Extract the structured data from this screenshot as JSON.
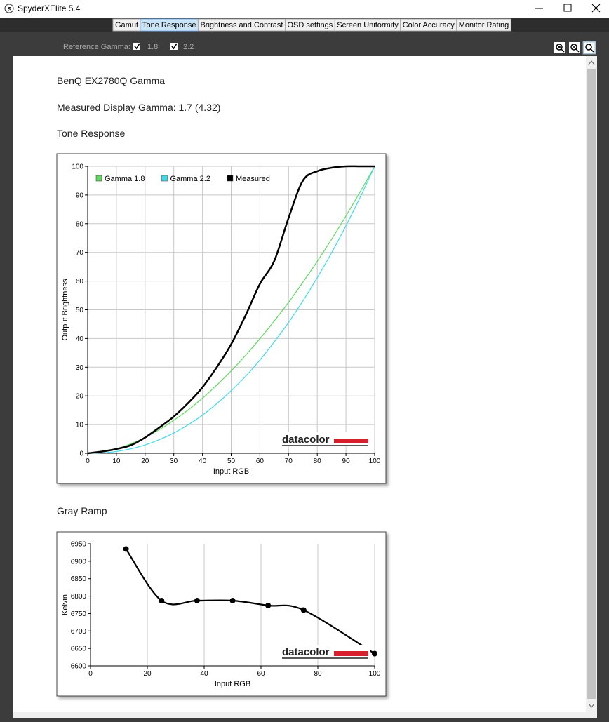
{
  "window": {
    "title": "SpyderXElite 5.4"
  },
  "tabs": [
    "Gamut",
    "Tone Response",
    "Brightness and Contrast",
    "OSD settings",
    "Screen Uniformity",
    "Color Accuracy",
    "Monitor Rating"
  ],
  "active_tab": 1,
  "toolbar": {
    "reference_gamma_label": "Reference Gamma:",
    "options": [
      "1.8",
      "2.2"
    ]
  },
  "report": {
    "title": "BenQ EX2780Q Gamma",
    "measured": "Measured Display Gamma: 1.7 (4.32)"
  },
  "chart_data": [
    {
      "type": "line",
      "title": "Tone Response",
      "x_label": "Input RGB",
      "y_label": "Output Brightness",
      "logo": "datacolor",
      "x": [
        0,
        5,
        10,
        15,
        20,
        25,
        30,
        35,
        40,
        45,
        50,
        55,
        60,
        65,
        70,
        75,
        80,
        85,
        90,
        95,
        100
      ],
      "series": [
        {
          "name": "Gamma 1.8",
          "color": "#5ddc5d",
          "values": [
            0,
            0.45,
            1.58,
            3.29,
            5.52,
            8.25,
            11.5,
            15.1,
            19.2,
            23.8,
            28.7,
            34.1,
            39.9,
            46.1,
            52.6,
            59.6,
            66.9,
            74.6,
            82.7,
            91.2,
            100
          ]
        },
        {
          "name": "Gamma 2.2",
          "color": "#3cdcec",
          "values": [
            0,
            0.14,
            0.63,
            1.54,
            2.9,
            4.74,
            7.07,
            9.93,
            13.3,
            17.3,
            21.8,
            26.8,
            32.5,
            38.8,
            45.6,
            53.1,
            61.2,
            69.9,
            79.3,
            89.3,
            100
          ]
        },
        {
          "name": "Measured",
          "color": "#000000",
          "values": [
            0,
            0.6,
            1.5,
            2.8,
            5.5,
            9,
            12.8,
            17.5,
            23,
            30,
            38,
            48,
            59,
            67,
            82,
            95,
            98.3,
            99.5,
            100,
            100,
            100
          ]
        }
      ],
      "xlim": [
        0,
        100
      ],
      "ylim": [
        0,
        100
      ],
      "xticks": [
        0,
        10,
        20,
        30,
        40,
        50,
        60,
        70,
        80,
        90,
        100
      ],
      "yticks": [
        0,
        10,
        20,
        30,
        40,
        50,
        60,
        70,
        80,
        90,
        100
      ],
      "grid": "both",
      "legend": "top-left"
    },
    {
      "type": "line",
      "title": "Gray Ramp",
      "x_label": "Input RGB",
      "y_label": "Kelvin",
      "logo": "datacolor",
      "x": [
        12.5,
        25,
        37.5,
        50,
        62.5,
        75,
        100
      ],
      "values": [
        6935,
        6787,
        6787,
        6787,
        6773,
        6760,
        6635
      ],
      "color": "#000000",
      "markers": true,
      "xlim": [
        0,
        100
      ],
      "ylim": [
        6600,
        6950
      ],
      "xticks": [
        0,
        20,
        40,
        60,
        80,
        100
      ],
      "yticks": [
        6600,
        6650,
        6700,
        6750,
        6800,
        6850,
        6900,
        6950
      ],
      "grid": "x"
    }
  ]
}
